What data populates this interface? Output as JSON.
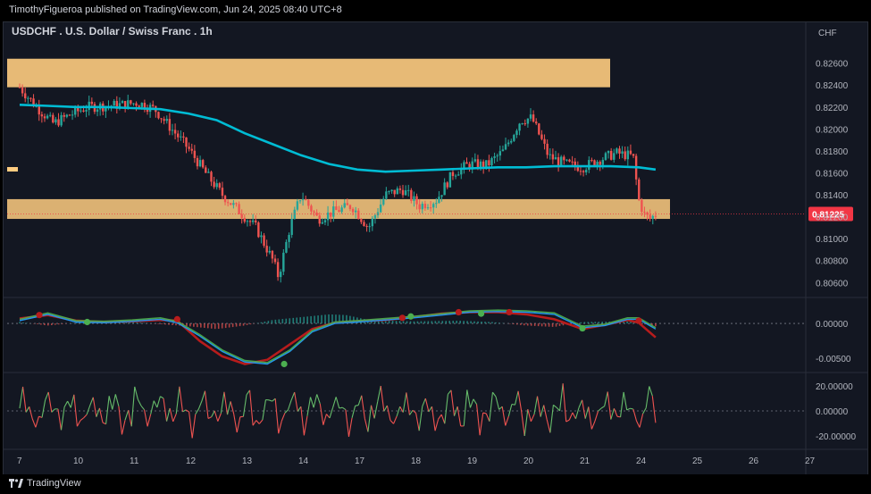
{
  "header": {
    "publisher": "TimothyFigueroa published on TradingView.com, Jun 24, 2025 08:40 UTC+8"
  },
  "chart_title": "USDCHF . U.S. Dollar / Swiss Franc . 1h",
  "currency_label": "CHF",
  "brand": {
    "name": "TradingView"
  },
  "colors": {
    "bull": "#26a69a",
    "bear": "#ef5350",
    "zone": "#ffcc80",
    "ma": "#00bcd4",
    "last_price": "#f23645"
  },
  "chart_data": [
    {
      "type": "candlestick",
      "title": "USDCHF . U.S. Dollar / Swiss Franc . 1h",
      "ylabel": "CHF",
      "ylim": [
        0.8048,
        0.8276
      ],
      "yticks": [
        "0.82600",
        "0.82400",
        "0.82200",
        "0.82000",
        "0.81800",
        "0.81600",
        "0.81400",
        "0.81200",
        "0.81000",
        "0.80800",
        "0.80600"
      ],
      "xticks": [
        "7",
        "10",
        "11",
        "12",
        "13",
        "14",
        "17",
        "18",
        "19",
        "20",
        "21",
        "24",
        "25",
        "26",
        "27"
      ],
      "last_price": "0.81225",
      "zones": [
        {
          "from": 0.8238,
          "to": 0.8264
        },
        {
          "from": 0.8118,
          "to": 0.8136
        }
      ],
      "ma_path": [
        [
          0,
          0.8222
        ],
        [
          0.5,
          0.8221
        ],
        [
          1.0,
          0.822
        ],
        [
          1.5,
          0.822
        ],
        [
          2.0,
          0.8219
        ],
        [
          2.5,
          0.8218
        ],
        [
          3.0,
          0.8214
        ],
        [
          3.5,
          0.8208
        ],
        [
          4.0,
          0.8196
        ],
        [
          4.5,
          0.8186
        ],
        [
          5.0,
          0.8176
        ],
        [
          5.5,
          0.8168
        ],
        [
          6.0,
          0.8163
        ],
        [
          6.5,
          0.8161
        ],
        [
          7.0,
          0.8162
        ],
        [
          7.5,
          0.8163
        ],
        [
          8.0,
          0.8164
        ],
        [
          8.5,
          0.8165
        ],
        [
          9.0,
          0.8165
        ],
        [
          9.5,
          0.8166
        ],
        [
          10.0,
          0.8166
        ],
        [
          10.5,
          0.8166
        ],
        [
          11.0,
          0.8165
        ],
        [
          11.3,
          0.8163
        ]
      ],
      "price_path": [
        [
          0,
          0.8238
        ],
        [
          0.3,
          0.822
        ],
        [
          0.6,
          0.8205
        ],
        [
          0.9,
          0.8213
        ],
        [
          1.2,
          0.822
        ],
        [
          1.5,
          0.8221
        ],
        [
          1.8,
          0.8222
        ],
        [
          2.1,
          0.8224
        ],
        [
          2.4,
          0.8218
        ],
        [
          2.7,
          0.82
        ],
        [
          3.0,
          0.8182
        ],
        [
          3.3,
          0.816
        ],
        [
          3.6,
          0.814
        ],
        [
          3.9,
          0.8125
        ],
        [
          4.2,
          0.811
        ],
        [
          4.5,
          0.808
        ],
        [
          4.6,
          0.8065
        ],
        [
          4.8,
          0.811
        ],
        [
          5.0,
          0.814
        ],
        [
          5.3,
          0.8118
        ],
        [
          5.6,
          0.8125
        ],
        [
          5.9,
          0.813
        ],
        [
          6.2,
          0.811
        ],
        [
          6.5,
          0.814
        ],
        [
          6.8,
          0.8145
        ],
        [
          7.1,
          0.813
        ],
        [
          7.4,
          0.8135
        ],
        [
          7.7,
          0.816
        ],
        [
          8.0,
          0.8168
        ],
        [
          8.3,
          0.8167
        ],
        [
          8.6,
          0.818
        ],
        [
          8.9,
          0.8208
        ],
        [
          9.1,
          0.821
        ],
        [
          9.4,
          0.8175
        ],
        [
          9.7,
          0.8168
        ],
        [
          10.0,
          0.8165
        ],
        [
          10.3,
          0.8172
        ],
        [
          10.6,
          0.8178
        ],
        [
          10.9,
          0.8175
        ],
        [
          11.0,
          0.8135
        ],
        [
          11.1,
          0.8122
        ],
        [
          11.2,
          0.8118
        ],
        [
          11.3,
          0.8122
        ]
      ],
      "x_days_per_tick": 1
    },
    {
      "type": "line",
      "title": "",
      "ylim": [
        -0.0065,
        0.0032
      ],
      "yticks": [
        "0.00000",
        "-0.00500"
      ],
      "series": [],
      "green_path": [
        [
          0,
          0.0004
        ],
        [
          0.5,
          0.0013
        ],
        [
          1.0,
          0.0002
        ],
        [
          1.5,
          0.0001
        ],
        [
          2.0,
          0.0003
        ],
        [
          2.5,
          0.0006
        ],
        [
          2.8,
          0.0001
        ],
        [
          3.2,
          -0.0018
        ],
        [
          3.6,
          -0.004
        ],
        [
          4.0,
          -0.0055
        ],
        [
          4.4,
          -0.0058
        ],
        [
          4.8,
          -0.004
        ],
        [
          5.2,
          -0.0012
        ],
        [
          5.6,
          0.0
        ],
        [
          6.0,
          0.0002
        ],
        [
          6.5,
          0.0005
        ],
        [
          7.0,
          0.0008
        ],
        [
          7.5,
          0.0012
        ],
        [
          8.0,
          0.0016
        ],
        [
          8.5,
          0.0017
        ],
        [
          9.0,
          0.0016
        ],
        [
          9.5,
          0.0013
        ],
        [
          10.0,
          -0.0006
        ],
        [
          10.4,
          -0.0003
        ],
        [
          10.8,
          0.0006
        ],
        [
          11.0,
          0.0006
        ],
        [
          11.3,
          -0.0008
        ]
      ],
      "red_path": [
        [
          0,
          0.0007
        ],
        [
          0.5,
          0.0012
        ],
        [
          1.0,
          0.0004
        ],
        [
          1.5,
          0.0002
        ],
        [
          2.0,
          0.0003
        ],
        [
          2.5,
          0.0005
        ],
        [
          2.8,
          0.0004
        ],
        [
          3.2,
          -0.0025
        ],
        [
          3.6,
          -0.0047
        ],
        [
          4.0,
          -0.0058
        ],
        [
          4.4,
          -0.0052
        ],
        [
          4.8,
          -0.003
        ],
        [
          5.2,
          -0.0008
        ],
        [
          5.6,
          0.0001
        ],
        [
          6.0,
          0.0003
        ],
        [
          6.5,
          0.0005
        ],
        [
          7.0,
          0.0009
        ],
        [
          7.5,
          0.0014
        ],
        [
          8.0,
          0.0016
        ],
        [
          8.5,
          0.0016
        ],
        [
          9.0,
          0.0013
        ],
        [
          9.5,
          0.0006
        ],
        [
          10.0,
          -0.0008
        ],
        [
          10.4,
          -0.0002
        ],
        [
          10.8,
          0.0005
        ],
        [
          11.0,
          0.0001
        ],
        [
          11.3,
          -0.002
        ]
      ],
      "hist_path": [
        [
          0,
          0.0002
        ],
        [
          0.5,
          -0.0003
        ],
        [
          1.0,
          0.0001
        ],
        [
          2.0,
          0.0002
        ],
        [
          3.0,
          -0.0004
        ],
        [
          3.5,
          -0.0008
        ],
        [
          4.0,
          -0.0003
        ],
        [
          4.5,
          0.0005
        ],
        [
          5.0,
          0.0009
        ],
        [
          5.5,
          0.0013
        ],
        [
          5.8,
          0.0012
        ],
        [
          6.2,
          0.0005
        ],
        [
          7.0,
          0.0003
        ],
        [
          7.8,
          0.0004
        ],
        [
          8.4,
          0.0002
        ],
        [
          9.0,
          -0.0003
        ],
        [
          9.5,
          -0.0005
        ],
        [
          10.0,
          0.0002
        ],
        [
          10.8,
          0.0003
        ],
        [
          11.3,
          -0.0004
        ]
      ],
      "cross_points": [
        {
          "x": 0.35,
          "y": 0.0012,
          "c": "bear"
        },
        {
          "x": 1.2,
          "y": 0.0002,
          "c": "bull"
        },
        {
          "x": 2.8,
          "y": 0.0006,
          "c": "bear"
        },
        {
          "x": 4.7,
          "y": -0.0058,
          "c": "bull"
        },
        {
          "x": 6.8,
          "y": 0.0008,
          "c": "bear"
        },
        {
          "x": 6.95,
          "y": 0.001,
          "c": "bull"
        },
        {
          "x": 7.8,
          "y": 0.0016,
          "c": "bear"
        },
        {
          "x": 8.2,
          "y": 0.0014,
          "c": "bull"
        },
        {
          "x": 8.7,
          "y": 0.0016,
          "c": "bear"
        },
        {
          "x": 10.0,
          "y": -0.0007,
          "c": "bull"
        },
        {
          "x": 11.0,
          "y": 0.0004,
          "c": "bear"
        }
      ]
    },
    {
      "type": "line",
      "title": "",
      "ylim": [
        -28,
        28
      ],
      "yticks": [
        "20.00000",
        "0.00000",
        "-20.00000"
      ],
      "series": []
    }
  ]
}
